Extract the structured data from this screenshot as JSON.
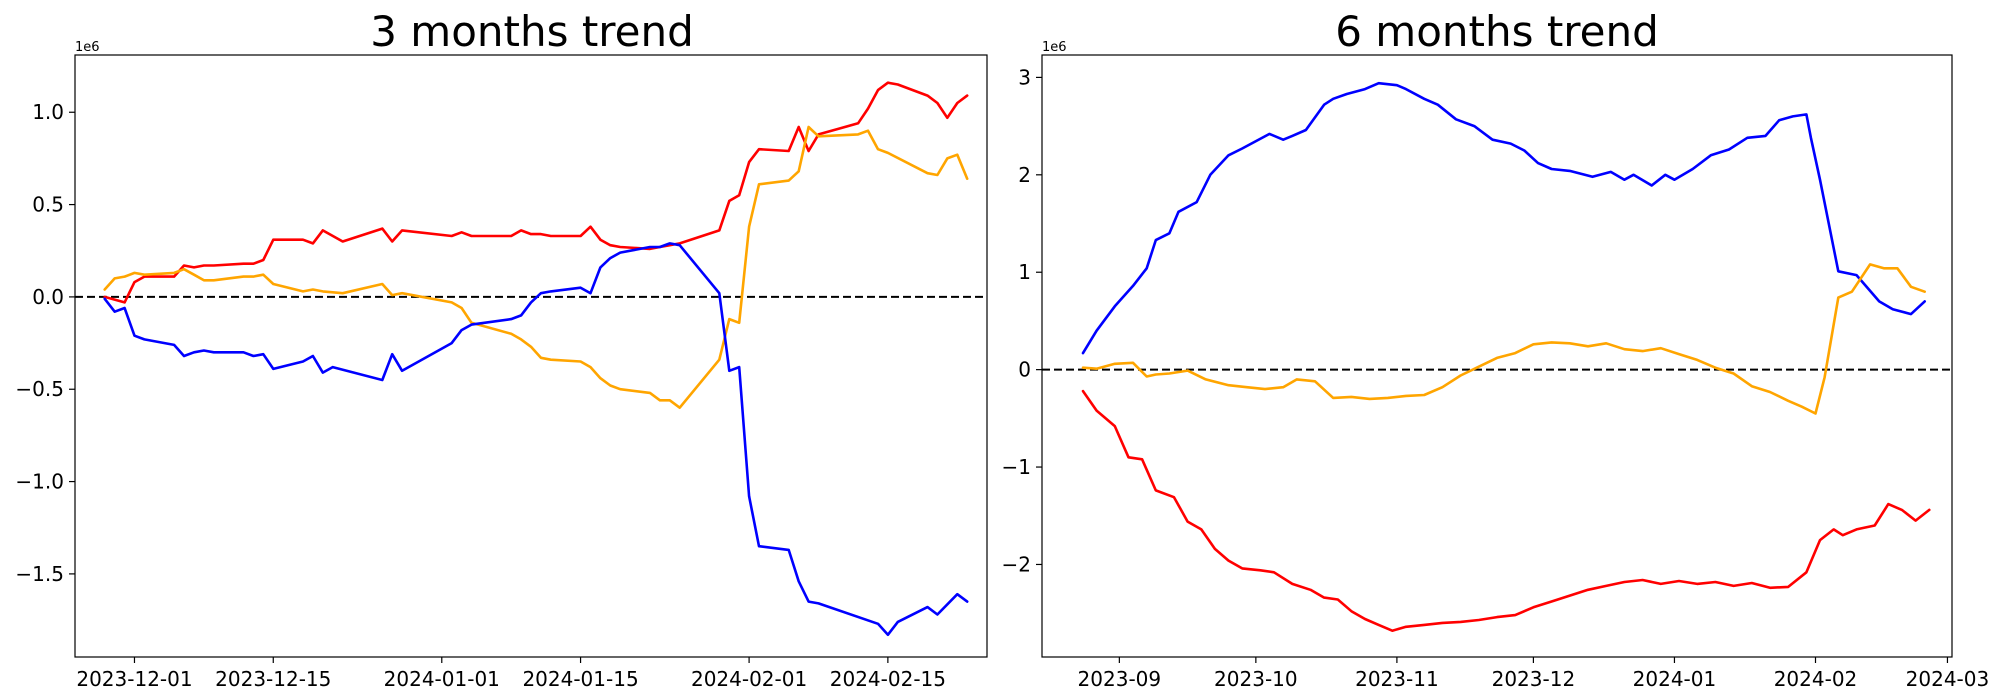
{
  "chart_data": [
    {
      "type": "line",
      "title": "3 months trend",
      "y_offset_label": "1e6",
      "xlim": [
        "2023-11-25",
        "2024-02-25"
      ],
      "ylim": [
        -1950000,
        1310000
      ],
      "x_ticks": [
        {
          "value": "2023-12-01",
          "label": "2023-12-01"
        },
        {
          "value": "2023-12-15",
          "label": "2023-12-15"
        },
        {
          "value": "2024-01-01",
          "label": "2024-01-01"
        },
        {
          "value": "2024-01-15",
          "label": "2024-01-15"
        },
        {
          "value": "2024-02-01",
          "label": "2024-02-01"
        },
        {
          "value": "2024-02-15",
          "label": "2024-02-15"
        }
      ],
      "y_ticks": [
        {
          "value": -1500000,
          "label": "−1.5"
        },
        {
          "value": -1000000,
          "label": "−1.0"
        },
        {
          "value": -500000,
          "label": "−0.5"
        },
        {
          "value": 0,
          "label": "0.0"
        },
        {
          "value": 500000,
          "label": "0.5"
        },
        {
          "value": 1000000,
          "label": "1.0"
        }
      ],
      "reference_line": {
        "y": 0,
        "style": "dashed",
        "color": "#000000"
      },
      "grid": false,
      "legend": "none",
      "series": [
        {
          "color": "#ff0000",
          "x": [
            "2023-11-28",
            "2023-11-30",
            "2023-12-01",
            "2023-12-02",
            "2023-12-05",
            "2023-12-06",
            "2023-12-07",
            "2023-12-08",
            "2023-12-09",
            "2023-12-12",
            "2023-12-13",
            "2023-12-14",
            "2023-12-15",
            "2023-12-18",
            "2023-12-19",
            "2023-12-20",
            "2023-12-22",
            "2023-12-26",
            "2023-12-27",
            "2023-12-28",
            "2024-01-02",
            "2024-01-03",
            "2024-01-04",
            "2024-01-08",
            "2024-01-09",
            "2024-01-10",
            "2024-01-11",
            "2024-01-12",
            "2024-01-15",
            "2024-01-16",
            "2024-01-17",
            "2024-01-18",
            "2024-01-19",
            "2024-01-22",
            "2024-01-23",
            "2024-01-24",
            "2024-01-25",
            "2024-01-29",
            "2024-01-30",
            "2024-01-31",
            "2024-02-01",
            "2024-02-02",
            "2024-02-05",
            "2024-02-06",
            "2024-02-07",
            "2024-02-08",
            "2024-02-12",
            "2024-02-13",
            "2024-02-14",
            "2024-02-15",
            "2024-02-16",
            "2024-02-19",
            "2024-02-20",
            "2024-02-21",
            "2024-02-22",
            "2024-02-23"
          ],
          "values": [
            0,
            -30000,
            80000,
            110000,
            110000,
            170000,
            160000,
            170000,
            170000,
            180000,
            180000,
            200000,
            310000,
            310000,
            290000,
            360000,
            300000,
            370000,
            300000,
            360000,
            330000,
            350000,
            330000,
            330000,
            360000,
            340000,
            340000,
            330000,
            330000,
            380000,
            310000,
            280000,
            270000,
            260000,
            270000,
            280000,
            290000,
            360000,
            520000,
            550000,
            730000,
            800000,
            790000,
            920000,
            790000,
            880000,
            940000,
            1020000,
            1120000,
            1160000,
            1150000,
            1090000,
            1050000,
            970000,
            1050000,
            1090000
          ]
        },
        {
          "color": "#ffa500",
          "x": [
            "2023-11-28",
            "2023-11-29",
            "2023-11-30",
            "2023-12-01",
            "2023-12-02",
            "2023-12-05",
            "2023-12-06",
            "2023-12-07",
            "2023-12-08",
            "2023-12-09",
            "2023-12-12",
            "2023-12-13",
            "2023-12-14",
            "2023-12-15",
            "2023-12-18",
            "2023-12-19",
            "2023-12-20",
            "2023-12-22",
            "2023-12-26",
            "2023-12-27",
            "2023-12-28",
            "2024-01-02",
            "2024-01-03",
            "2024-01-04",
            "2024-01-08",
            "2024-01-09",
            "2024-01-10",
            "2024-01-11",
            "2024-01-12",
            "2024-01-15",
            "2024-01-16",
            "2024-01-17",
            "2024-01-18",
            "2024-01-19",
            "2024-01-22",
            "2024-01-23",
            "2024-01-24",
            "2024-01-25",
            "2024-01-29",
            "2024-01-30",
            "2024-01-31",
            "2024-02-01",
            "2024-02-02",
            "2024-02-05",
            "2024-02-06",
            "2024-02-07",
            "2024-02-08",
            "2024-02-12",
            "2024-02-13",
            "2024-02-14",
            "2024-02-15",
            "2024-02-19",
            "2024-02-20",
            "2024-02-21",
            "2024-02-22",
            "2024-02-23"
          ],
          "values": [
            40000,
            100000,
            110000,
            130000,
            120000,
            130000,
            150000,
            120000,
            90000,
            90000,
            110000,
            110000,
            120000,
            70000,
            30000,
            40000,
            30000,
            20000,
            70000,
            10000,
            20000,
            -30000,
            -60000,
            -140000,
            -200000,
            -230000,
            -270000,
            -330000,
            -340000,
            -350000,
            -380000,
            -440000,
            -480000,
            -500000,
            -520000,
            -560000,
            -560000,
            -600000,
            -340000,
            -120000,
            -140000,
            380000,
            610000,
            630000,
            680000,
            920000,
            870000,
            880000,
            900000,
            800000,
            780000,
            670000,
            660000,
            750000,
            770000,
            640000
          ]
        },
        {
          "color": "#0000ff",
          "x": [
            "2023-11-28",
            "2023-11-29",
            "2023-11-30",
            "2023-12-01",
            "2023-12-02",
            "2023-12-05",
            "2023-12-06",
            "2023-12-07",
            "2023-12-08",
            "2023-12-09",
            "2023-12-12",
            "2023-12-13",
            "2023-12-14",
            "2023-12-15",
            "2023-12-18",
            "2023-12-19",
            "2023-12-20",
            "2023-12-21",
            "2023-12-26",
            "2023-12-27",
            "2023-12-28",
            "2024-01-02",
            "2024-01-03",
            "2024-01-04",
            "2024-01-08",
            "2024-01-09",
            "2024-01-10",
            "2024-01-11",
            "2024-01-12",
            "2024-01-15",
            "2024-01-16",
            "2024-01-17",
            "2024-01-18",
            "2024-01-19",
            "2024-01-22",
            "2024-01-23",
            "2024-01-24",
            "2024-01-25",
            "2024-01-29",
            "2024-01-30",
            "2024-01-31",
            "2024-02-01",
            "2024-02-02",
            "2024-02-05",
            "2024-02-06",
            "2024-02-07",
            "2024-02-08",
            "2024-02-14",
            "2024-02-15",
            "2024-02-16",
            "2024-02-19",
            "2024-02-20",
            "2024-02-22",
            "2024-02-23"
          ],
          "values": [
            -10000,
            -80000,
            -60000,
            -210000,
            -230000,
            -260000,
            -320000,
            -300000,
            -290000,
            -300000,
            -300000,
            -320000,
            -310000,
            -390000,
            -350000,
            -320000,
            -410000,
            -380000,
            -450000,
            -310000,
            -400000,
            -250000,
            -180000,
            -150000,
            -120000,
            -100000,
            -30000,
            20000,
            30000,
            50000,
            20000,
            160000,
            210000,
            240000,
            270000,
            270000,
            290000,
            280000,
            20000,
            -400000,
            -380000,
            -1080000,
            -1350000,
            -1370000,
            -1540000,
            -1650000,
            -1660000,
            -1770000,
            -1830000,
            -1760000,
            -1680000,
            -1720000,
            -1610000,
            -1650000
          ]
        }
      ]
    },
    {
      "type": "line",
      "title": "6 months trend",
      "y_offset_label": "1e6",
      "xlim": [
        "2023-08-15",
        "2024-03-02"
      ],
      "ylim": [
        -2950000,
        3230000
      ],
      "x_ticks": [
        {
          "value": "2023-09-01",
          "label": "2023-09"
        },
        {
          "value": "2023-10-01",
          "label": "2023-10"
        },
        {
          "value": "2023-11-01",
          "label": "2023-11"
        },
        {
          "value": "2023-12-01",
          "label": "2023-12"
        },
        {
          "value": "2024-01-01",
          "label": "2024-01"
        },
        {
          "value": "2024-02-01",
          "label": "2024-02"
        },
        {
          "value": "2024-03-01",
          "label": "2024-03"
        }
      ],
      "y_ticks": [
        {
          "value": -2000000,
          "label": "−2"
        },
        {
          "value": -1000000,
          "label": "−1"
        },
        {
          "value": 0,
          "label": "0"
        },
        {
          "value": 1000000,
          "label": "1"
        },
        {
          "value": 2000000,
          "label": "2"
        },
        {
          "value": 3000000,
          "label": "3"
        }
      ],
      "reference_line": {
        "y": 0,
        "style": "dashed",
        "color": "#000000"
      },
      "grid": false,
      "legend": "none",
      "series": [
        {
          "color": "#0000ff",
          "x": [
            "2023-08-24",
            "2023-08-27",
            "2023-08-31",
            "2023-09-04",
            "2023-09-07",
            "2023-09-09",
            "2023-09-12",
            "2023-09-14",
            "2023-09-18",
            "2023-09-21",
            "2023-09-25",
            "2023-09-28",
            "2023-10-04",
            "2023-10-07",
            "2023-10-09",
            "2023-10-12",
            "2023-10-16",
            "2023-10-18",
            "2023-10-21",
            "2023-10-25",
            "2023-10-28",
            "2023-11-01",
            "2023-11-03",
            "2023-11-07",
            "2023-11-10",
            "2023-11-14",
            "2023-11-18",
            "2023-11-22",
            "2023-11-26",
            "2023-11-29",
            "2023-12-02",
            "2023-12-05",
            "2023-12-09",
            "2023-12-14",
            "2023-12-18",
            "2023-12-21",
            "2023-12-23",
            "2023-12-27",
            "2023-12-30",
            "2024-01-01",
            "2024-01-05",
            "2024-01-09",
            "2024-01-13",
            "2024-01-17",
            "2024-01-21",
            "2024-01-24",
            "2024-01-27",
            "2024-01-30",
            "2024-01-31",
            "2024-02-02",
            "2024-02-06",
            "2024-02-10",
            "2024-02-15",
            "2024-02-18",
            "2024-02-22",
            "2024-02-25"
          ],
          "values": [
            170000,
            400000,
            650000,
            860000,
            1040000,
            1330000,
            1400000,
            1620000,
            1720000,
            2000000,
            2200000,
            2270000,
            2420000,
            2360000,
            2400000,
            2460000,
            2720000,
            2780000,
            2830000,
            2880000,
            2940000,
            2920000,
            2880000,
            2780000,
            2720000,
            2570000,
            2500000,
            2360000,
            2320000,
            2250000,
            2120000,
            2060000,
            2040000,
            1980000,
            2030000,
            1950000,
            2000000,
            1890000,
            2000000,
            1950000,
            2060000,
            2200000,
            2260000,
            2380000,
            2400000,
            2560000,
            2600000,
            2620000,
            2380000,
            1950000,
            1010000,
            970000,
            700000,
            620000,
            570000,
            700000
          ]
        },
        {
          "color": "#ffa500",
          "x": [
            "2023-08-24",
            "2023-08-27",
            "2023-08-31",
            "2023-09-04",
            "2023-09-07",
            "2023-09-09",
            "2023-09-12",
            "2023-09-16",
            "2023-09-20",
            "2023-09-25",
            "2023-09-29",
            "2023-10-03",
            "2023-10-07",
            "2023-10-10",
            "2023-10-14",
            "2023-10-18",
            "2023-10-22",
            "2023-10-26",
            "2023-10-30",
            "2023-11-03",
            "2023-11-07",
            "2023-11-11",
            "2023-11-15",
            "2023-11-19",
            "2023-11-23",
            "2023-11-27",
            "2023-12-01",
            "2023-12-05",
            "2023-12-09",
            "2023-12-13",
            "2023-12-17",
            "2023-12-21",
            "2023-12-25",
            "2023-12-29",
            "2024-01-02",
            "2024-01-06",
            "2024-01-10",
            "2024-01-14",
            "2024-01-18",
            "2024-01-22",
            "2024-01-26",
            "2024-01-29",
            "2024-02-01",
            "2024-02-03",
            "2024-02-06",
            "2024-02-09",
            "2024-02-13",
            "2024-02-16",
            "2024-02-19",
            "2024-02-22",
            "2024-02-25"
          ],
          "values": [
            20000,
            10000,
            60000,
            70000,
            -70000,
            -50000,
            -40000,
            -10000,
            -100000,
            -160000,
            -180000,
            -200000,
            -180000,
            -100000,
            -120000,
            -290000,
            -280000,
            -300000,
            -290000,
            -270000,
            -260000,
            -180000,
            -60000,
            30000,
            120000,
            170000,
            260000,
            280000,
            270000,
            240000,
            270000,
            210000,
            190000,
            220000,
            160000,
            100000,
            20000,
            -40000,
            -170000,
            -230000,
            -320000,
            -380000,
            -450000,
            -80000,
            740000,
            800000,
            1080000,
            1040000,
            1040000,
            850000,
            800000
          ]
        },
        {
          "color": "#ff0000",
          "x": [
            "2023-08-24",
            "2023-08-27",
            "2023-08-31",
            "2023-09-03",
            "2023-09-06",
            "2023-09-09",
            "2023-09-13",
            "2023-09-16",
            "2023-09-19",
            "2023-09-22",
            "2023-09-25",
            "2023-09-28",
            "2023-10-02",
            "2023-10-05",
            "2023-10-09",
            "2023-10-13",
            "2023-10-16",
            "2023-10-19",
            "2023-10-22",
            "2023-10-25",
            "2023-10-28",
            "2023-10-31",
            "2023-11-03",
            "2023-11-07",
            "2023-11-11",
            "2023-11-15",
            "2023-11-19",
            "2023-11-23",
            "2023-11-27",
            "2023-12-01",
            "2023-12-05",
            "2023-12-09",
            "2023-12-13",
            "2023-12-17",
            "2023-12-21",
            "2023-12-25",
            "2023-12-29",
            "2024-01-02",
            "2024-01-06",
            "2024-01-10",
            "2024-01-14",
            "2024-01-18",
            "2024-01-22",
            "2024-01-26",
            "2024-01-30",
            "2024-02-02",
            "2024-02-05",
            "2024-02-07",
            "2024-02-10",
            "2024-02-14",
            "2024-02-17",
            "2024-02-20",
            "2024-02-23",
            "2024-02-26"
          ],
          "values": [
            -220000,
            -420000,
            -580000,
            -900000,
            -920000,
            -1240000,
            -1310000,
            -1560000,
            -1640000,
            -1840000,
            -1960000,
            -2040000,
            -2060000,
            -2080000,
            -2200000,
            -2260000,
            -2340000,
            -2360000,
            -2480000,
            -2560000,
            -2620000,
            -2680000,
            -2640000,
            -2620000,
            -2600000,
            -2590000,
            -2570000,
            -2540000,
            -2520000,
            -2440000,
            -2380000,
            -2320000,
            -2260000,
            -2220000,
            -2180000,
            -2160000,
            -2200000,
            -2170000,
            -2200000,
            -2180000,
            -2220000,
            -2190000,
            -2240000,
            -2230000,
            -2080000,
            -1750000,
            -1640000,
            -1700000,
            -1640000,
            -1600000,
            -1380000,
            -1440000,
            -1550000,
            -1440000
          ]
        }
      ]
    }
  ]
}
